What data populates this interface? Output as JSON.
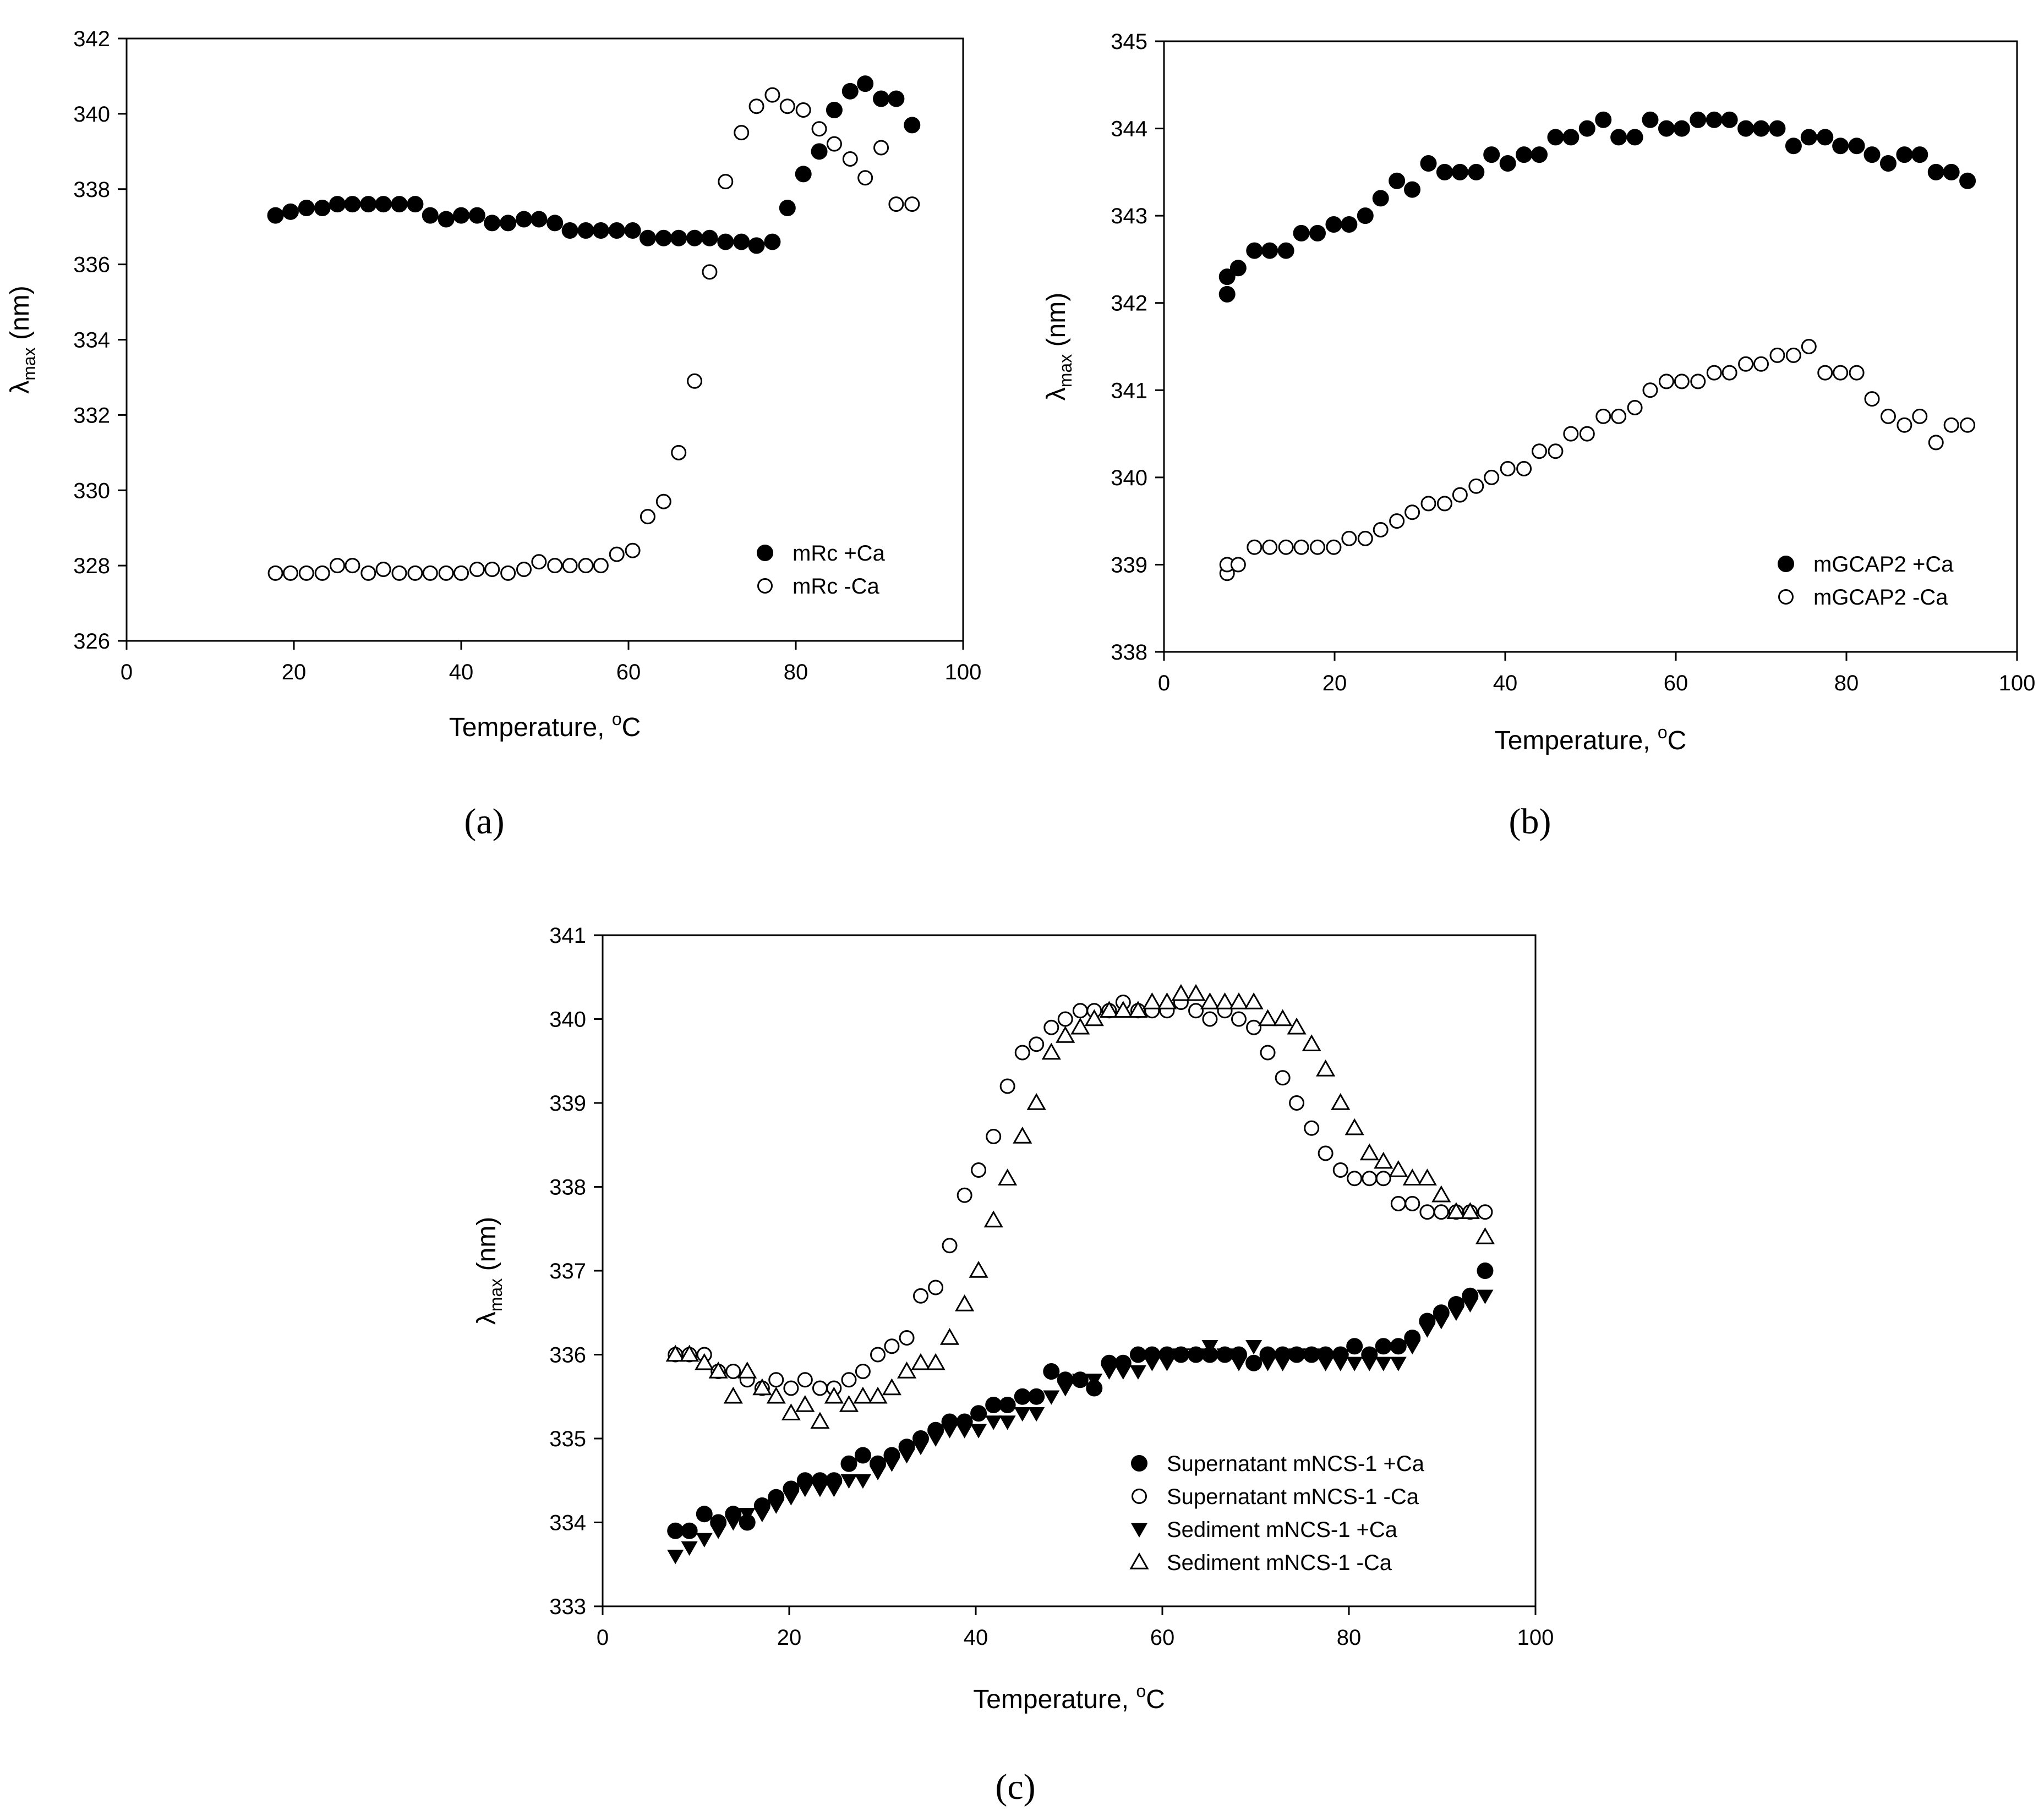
{
  "figure": {
    "panel_labels": [
      "(a)",
      "(b)",
      "(c)"
    ]
  },
  "chart_data": [
    {
      "id": "a",
      "type": "scatter",
      "panel_label": "(a)",
      "title": "",
      "xlabel": "Temperature, °C",
      "xlabel_main": "Temperature, ",
      "xlabel_sup": "o",
      "xlabel_unit": "C",
      "ylabel": "λmax (nm)",
      "ylabel_symbol": "λ",
      "ylabel_sub": "max",
      "ylabel_unit": " (nm)",
      "xlim": [
        0,
        100
      ],
      "ylim": [
        326,
        342
      ],
      "xticks": [
        0,
        20,
        40,
        60,
        80,
        100
      ],
      "yticks": [
        326,
        328,
        330,
        332,
        334,
        336,
        338,
        340,
        342
      ],
      "legend_position": "lower-right",
      "series": [
        {
          "name": "mRc +Ca",
          "marker": "filled-circle",
          "x": [
            17.8,
            19.6,
            21.5,
            23.4,
            25.2,
            27.0,
            28.9,
            30.7,
            32.6,
            34.5,
            36.3,
            38.2,
            40.0,
            41.9,
            43.7,
            45.6,
            47.5,
            49.3,
            51.2,
            53.0,
            54.9,
            56.7,
            58.6,
            60.5,
            62.3,
            64.2,
            66.0,
            67.9,
            69.7,
            71.6,
            73.5,
            75.3,
            77.2,
            79.0,
            80.9,
            82.8,
            84.6,
            86.5,
            88.3,
            90.2,
            92.0,
            93.9
          ],
          "y": [
            337.3,
            337.4,
            337.5,
            337.5,
            337.6,
            337.6,
            337.6,
            337.6,
            337.6,
            337.6,
            337.3,
            337.2,
            337.3,
            337.3,
            337.1,
            337.1,
            337.2,
            337.2,
            337.1,
            336.9,
            336.9,
            336.9,
            336.9,
            336.9,
            336.7,
            336.7,
            336.7,
            336.7,
            336.7,
            336.6,
            336.6,
            336.5,
            336.6,
            337.5,
            338.4,
            339.0,
            340.1,
            340.6,
            340.8,
            340.4,
            340.4,
            339.7
          ]
        },
        {
          "name": "mRc -Ca",
          "marker": "open-circle",
          "x": [
            17.8,
            19.6,
            21.5,
            23.4,
            25.2,
            27.0,
            28.9,
            30.7,
            32.6,
            34.5,
            36.3,
            38.2,
            40.0,
            41.9,
            43.7,
            45.6,
            47.5,
            49.3,
            51.2,
            53.0,
            54.9,
            56.7,
            58.6,
            60.5,
            62.3,
            64.2,
            66.0,
            67.9,
            69.7,
            71.6,
            73.5,
            75.3,
            77.2,
            79.0,
            80.9,
            82.8,
            84.6,
            86.5,
            88.3,
            90.2,
            92.0,
            93.9
          ],
          "y": [
            327.8,
            327.8,
            327.8,
            327.8,
            328.0,
            328.0,
            327.8,
            327.9,
            327.8,
            327.8,
            327.8,
            327.8,
            327.8,
            327.9,
            327.9,
            327.8,
            327.9,
            328.1,
            328.0,
            328.0,
            328.0,
            328.0,
            328.3,
            328.4,
            329.3,
            329.7,
            331.0,
            332.9,
            335.8,
            338.2,
            339.5,
            340.2,
            340.5,
            340.2,
            340.1,
            339.6,
            339.2,
            338.8,
            338.3,
            339.1,
            337.6,
            337.6
          ]
        }
      ]
    },
    {
      "id": "b",
      "type": "scatter",
      "panel_label": "(b)",
      "title": "",
      "xlabel": "Temperature, °C",
      "xlabel_main": "Temperature, ",
      "xlabel_sup": "o",
      "xlabel_unit": "C",
      "ylabel": "λmax (nm)",
      "ylabel_symbol": "λ",
      "ylabel_sub": "max",
      "ylabel_unit": " (nm)",
      "xlim": [
        0,
        100
      ],
      "ylim": [
        338,
        345
      ],
      "xticks": [
        0,
        20,
        40,
        60,
        80,
        100
      ],
      "yticks": [
        338,
        339,
        340,
        341,
        342,
        343,
        344,
        345
      ],
      "legend_position": "lower-right",
      "series": [
        {
          "name": "mGCAP2 +Ca",
          "marker": "filled-circle",
          "x": [
            7.4,
            7.4,
            8.7,
            10.6,
            12.4,
            14.3,
            16.1,
            18.0,
            19.9,
            21.7,
            23.6,
            25.4,
            27.3,
            29.1,
            31.0,
            32.9,
            34.7,
            36.6,
            38.4,
            40.3,
            42.2,
            44.0,
            45.9,
            47.7,
            49.6,
            51.5,
            53.3,
            55.2,
            57.0,
            58.9,
            60.7,
            62.6,
            64.5,
            66.3,
            68.2,
            70.0,
            71.9,
            73.8,
            75.6,
            77.5,
            79.3,
            81.2,
            83.0,
            84.9,
            86.8,
            88.6,
            90.5,
            92.3,
            94.2
          ],
          "y": [
            342.1,
            342.3,
            342.4,
            342.6,
            342.6,
            342.6,
            342.8,
            342.8,
            342.9,
            342.9,
            343.0,
            343.2,
            343.4,
            343.3,
            343.6,
            343.5,
            343.5,
            343.5,
            343.7,
            343.6,
            343.7,
            343.7,
            343.9,
            343.9,
            344.0,
            344.1,
            343.9,
            343.9,
            344.1,
            344.0,
            344.0,
            344.1,
            344.1,
            344.1,
            344.0,
            344.0,
            344.0,
            343.8,
            343.9,
            343.9,
            343.8,
            343.8,
            343.7,
            343.6,
            343.7,
            343.7,
            343.5,
            343.5,
            343.4
          ]
        },
        {
          "name": "mGCAP2 -Ca",
          "marker": "open-circle",
          "x": [
            7.4,
            7.4,
            8.7,
            10.6,
            12.4,
            14.3,
            16.1,
            18.0,
            19.9,
            21.7,
            23.6,
            25.4,
            27.3,
            29.1,
            31.0,
            32.9,
            34.7,
            36.6,
            38.4,
            40.3,
            42.2,
            44.0,
            45.9,
            47.7,
            49.6,
            51.5,
            53.3,
            55.2,
            57.0,
            58.9,
            60.7,
            62.6,
            64.5,
            66.3,
            68.2,
            70.0,
            71.9,
            73.8,
            75.6,
            77.5,
            79.3,
            81.2,
            83.0,
            84.9,
            86.8,
            88.6,
            90.5,
            92.3,
            94.2
          ],
          "y": [
            338.9,
            339.0,
            339.0,
            339.2,
            339.2,
            339.2,
            339.2,
            339.2,
            339.2,
            339.3,
            339.3,
            339.4,
            339.5,
            339.6,
            339.7,
            339.7,
            339.8,
            339.9,
            340.0,
            340.1,
            340.1,
            340.3,
            340.3,
            340.5,
            340.5,
            340.7,
            340.7,
            340.8,
            341.0,
            341.1,
            341.1,
            341.1,
            341.2,
            341.2,
            341.3,
            341.3,
            341.4,
            341.4,
            341.5,
            341.2,
            341.2,
            341.2,
            340.9,
            340.7,
            340.6,
            340.7,
            340.4,
            340.6,
            340.6
          ]
        }
      ]
    },
    {
      "id": "c",
      "type": "scatter",
      "panel_label": "(c)",
      "title": "",
      "xlabel": "Temperature, °C",
      "xlabel_main": "Temperature, ",
      "xlabel_sup": "o",
      "xlabel_unit": "C",
      "ylabel": "λmax (nm)",
      "ylabel_symbol": "λ",
      "ylabel_sub": "max",
      "ylabel_unit": " (nm)",
      "xlim": [
        0,
        100
      ],
      "ylim": [
        333,
        341
      ],
      "xticks": [
        0,
        20,
        40,
        60,
        80,
        100
      ],
      "yticks": [
        333,
        334,
        335,
        336,
        337,
        338,
        339,
        340,
        341
      ],
      "legend_position": "lower-right",
      "series": [
        {
          "name": "Supernatant mNCS-1 +Ca",
          "marker": "filled-circle",
          "x": [
            7.8,
            9.3,
            10.9,
            12.4,
            14.0,
            15.5,
            17.1,
            18.6,
            20.2,
            21.7,
            23.3,
            24.8,
            26.4,
            27.9,
            29.5,
            31.0,
            32.6,
            34.1,
            35.7,
            37.2,
            38.8,
            40.3,
            41.9,
            43.4,
            45.0,
            46.5,
            48.1,
            49.6,
            51.2,
            52.7,
            54.3,
            55.8,
            57.4,
            58.9,
            60.5,
            62.0,
            63.6,
            65.1,
            66.7,
            68.2,
            69.8,
            71.3,
            72.9,
            74.4,
            76.0,
            77.5,
            79.1,
            80.6,
            82.2,
            83.7,
            85.3,
            86.8,
            88.4,
            89.9,
            91.5,
            93.0,
            94.6
          ],
          "y": [
            333.9,
            333.9,
            334.1,
            334.0,
            334.1,
            334.0,
            334.2,
            334.3,
            334.4,
            334.5,
            334.5,
            334.5,
            334.7,
            334.8,
            334.7,
            334.8,
            334.9,
            335.0,
            335.1,
            335.2,
            335.2,
            335.3,
            335.4,
            335.4,
            335.5,
            335.5,
            335.8,
            335.7,
            335.7,
            335.6,
            335.9,
            335.9,
            336.0,
            336.0,
            336.0,
            336.0,
            336.0,
            336.0,
            336.0,
            336.0,
            335.9,
            336.0,
            336.0,
            336.0,
            336.0,
            336.0,
            336.0,
            336.1,
            336.0,
            336.1,
            336.1,
            336.2,
            336.4,
            336.5,
            336.6,
            336.7,
            337.0
          ]
        },
        {
          "name": "Supernatant mNCS-1 -Ca",
          "marker": "open-circle",
          "x": [
            7.8,
            9.3,
            10.9,
            12.4,
            14.0,
            15.5,
            17.1,
            18.6,
            20.2,
            21.7,
            23.3,
            24.8,
            26.4,
            27.9,
            29.5,
            31.0,
            32.6,
            34.1,
            35.7,
            37.2,
            38.8,
            40.3,
            41.9,
            43.4,
            45.0,
            46.5,
            48.1,
            49.6,
            51.2,
            52.7,
            54.3,
            55.8,
            57.4,
            58.9,
            60.5,
            62.0,
            63.6,
            65.1,
            66.7,
            68.2,
            69.8,
            71.3,
            72.9,
            74.4,
            76.0,
            77.5,
            79.1,
            80.6,
            82.2,
            83.7,
            85.3,
            86.8,
            88.4,
            89.9,
            91.5,
            93.0,
            94.6
          ],
          "y": [
            336.0,
            336.0,
            336.0,
            335.8,
            335.8,
            335.7,
            335.6,
            335.7,
            335.6,
            335.7,
            335.6,
            335.6,
            335.7,
            335.8,
            336.0,
            336.1,
            336.2,
            336.7,
            336.8,
            337.3,
            337.9,
            338.2,
            338.6,
            339.2,
            339.6,
            339.7,
            339.9,
            340.0,
            340.1,
            340.1,
            340.1,
            340.2,
            340.1,
            340.1,
            340.1,
            340.2,
            340.1,
            340.0,
            340.1,
            340.0,
            339.9,
            339.6,
            339.3,
            339.0,
            338.7,
            338.4,
            338.2,
            338.1,
            338.1,
            338.1,
            337.8,
            337.8,
            337.7,
            337.7,
            337.7,
            337.7,
            337.7
          ]
        },
        {
          "name": "Sediment mNCS-1 +Ca",
          "marker": "filled-triangle-down",
          "x": [
            7.8,
            9.3,
            10.9,
            12.4,
            14.0,
            15.5,
            17.1,
            18.6,
            20.2,
            21.7,
            23.3,
            24.8,
            26.4,
            27.9,
            29.5,
            31.0,
            32.6,
            34.1,
            35.7,
            37.2,
            38.8,
            40.3,
            41.9,
            43.4,
            45.0,
            46.5,
            48.1,
            49.6,
            51.2,
            52.7,
            54.3,
            55.8,
            57.4,
            58.9,
            60.5,
            62.0,
            63.6,
            65.1,
            66.7,
            68.2,
            69.8,
            71.3,
            72.9,
            74.4,
            76.0,
            77.5,
            79.1,
            80.6,
            82.2,
            83.7,
            85.3,
            86.8,
            88.4,
            89.9,
            91.5,
            93.0,
            94.6
          ],
          "y": [
            333.6,
            333.7,
            333.8,
            333.9,
            334.0,
            334.1,
            334.1,
            334.2,
            334.3,
            334.4,
            334.4,
            334.4,
            334.5,
            334.5,
            334.6,
            334.7,
            334.8,
            334.9,
            335.0,
            335.1,
            335.1,
            335.1,
            335.2,
            335.2,
            335.3,
            335.3,
            335.5,
            335.6,
            335.7,
            335.7,
            335.8,
            335.8,
            335.8,
            335.9,
            335.9,
            336.0,
            336.0,
            336.1,
            336.0,
            335.9,
            336.1,
            335.9,
            335.9,
            336.0,
            336.0,
            335.9,
            335.9,
            335.9,
            335.9,
            335.9,
            335.9,
            336.1,
            336.3,
            336.4,
            336.5,
            336.6,
            336.7
          ]
        },
        {
          "name": "Sediment mNCS-1 -Ca",
          "marker": "open-triangle-up",
          "x": [
            7.8,
            9.3,
            10.9,
            12.4,
            14.0,
            15.5,
            17.1,
            18.6,
            20.2,
            21.7,
            23.3,
            24.8,
            26.4,
            27.9,
            29.5,
            31.0,
            32.6,
            34.1,
            35.7,
            37.2,
            38.8,
            40.3,
            41.9,
            43.4,
            45.0,
            46.5,
            48.1,
            49.6,
            51.2,
            52.7,
            54.3,
            55.8,
            57.4,
            58.9,
            60.5,
            62.0,
            63.6,
            65.1,
            66.7,
            68.2,
            69.8,
            71.3,
            72.9,
            74.4,
            76.0,
            77.5,
            79.1,
            80.6,
            82.2,
            83.7,
            85.3,
            86.8,
            88.4,
            89.9,
            91.5,
            93.0,
            94.6
          ],
          "y": [
            336.0,
            336.0,
            335.9,
            335.8,
            335.5,
            335.8,
            335.6,
            335.5,
            335.3,
            335.4,
            335.2,
            335.5,
            335.4,
            335.5,
            335.5,
            335.6,
            335.8,
            335.9,
            335.9,
            336.2,
            336.6,
            337.0,
            337.6,
            338.1,
            338.6,
            339.0,
            339.6,
            339.8,
            339.9,
            340.0,
            340.1,
            340.1,
            340.1,
            340.2,
            340.2,
            340.3,
            340.3,
            340.2,
            340.2,
            340.2,
            340.2,
            340.0,
            340.0,
            339.9,
            339.7,
            339.4,
            339.0,
            338.7,
            338.4,
            338.3,
            338.2,
            338.1,
            338.1,
            337.9,
            337.7,
            337.7,
            337.4
          ]
        }
      ]
    }
  ]
}
